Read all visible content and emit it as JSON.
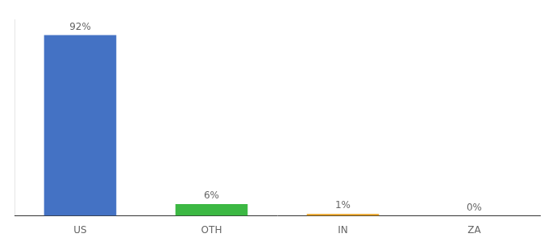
{
  "chart_data": {
    "type": "bar",
    "categories": [
      "US",
      "OTH",
      "IN",
      "ZA"
    ],
    "values": [
      92,
      6,
      1,
      0
    ],
    "value_labels": [
      "92%",
      "6%",
      "1%",
      "0%"
    ],
    "colors": [
      "#4472c4",
      "#3cb843",
      "#e8a020",
      "#e8a020"
    ],
    "ylim": [
      0,
      100
    ],
    "grid": false,
    "data_labels": true,
    "tick_labels": "x"
  }
}
